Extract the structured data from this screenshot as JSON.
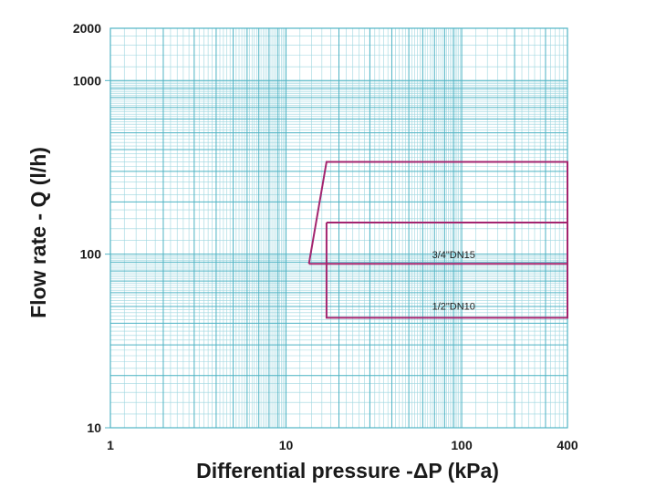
{
  "chart_data": {
    "type": "line",
    "title": "",
    "xlabel": "Differential pressure -ΔP (kPa)",
    "ylabel": "Flow rate - Q (l/h)",
    "xscale": "log",
    "yscale": "log",
    "xlim": [
      1,
      400
    ],
    "ylim": [
      10,
      2000
    ],
    "grid": true,
    "x_tick_labels": [
      {
        "value": 1,
        "label": "1"
      },
      {
        "value": 10,
        "label": "10"
      },
      {
        "value": 100,
        "label": "100"
      },
      {
        "value": 400,
        "label": "400"
      }
    ],
    "y_tick_labels": [
      {
        "value": 10,
        "label": "10"
      },
      {
        "value": 100,
        "label": "100"
      },
      {
        "value": 1000,
        "label": "1000"
      },
      {
        "value": 2000,
        "label": "2000"
      }
    ],
    "series": [
      {
        "name": "3/4\"DN15",
        "label": "3/4\"DN15",
        "label_at": {
          "x": 90,
          "y": 95
        },
        "points": [
          [
            13.5,
            88
          ],
          [
            17,
            340
          ],
          [
            400,
            340
          ],
          [
            400,
            88
          ],
          [
            13.5,
            88
          ]
        ]
      },
      {
        "name": "1/2\"DN10",
        "label": "1/2\"DN10",
        "label_at": {
          "x": 90,
          "y": 48
        },
        "points": [
          [
            17,
            152
          ],
          [
            400,
            152
          ],
          [
            400,
            43
          ],
          [
            17,
            43
          ],
          [
            17,
            152
          ]
        ]
      }
    ]
  },
  "colors": {
    "grid_major": "#4fb3c4",
    "grid_minor": "#9dd6df",
    "series": "#a3256f",
    "text": "#1a1a1a"
  }
}
